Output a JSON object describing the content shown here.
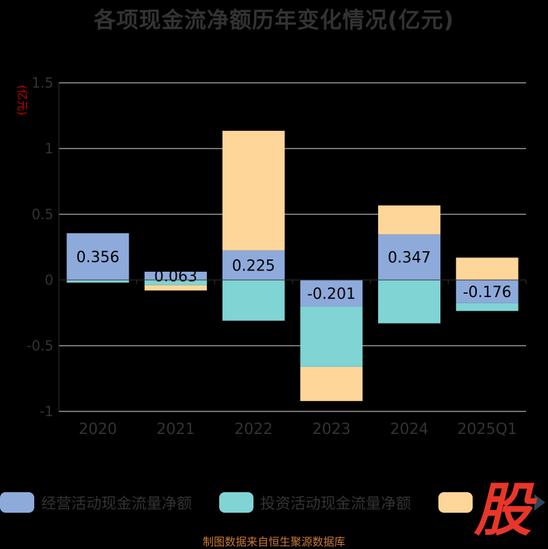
{
  "chart_data": {
    "type": "bar",
    "stacked": true,
    "title": "各项现金流净额历年变化情况(亿元)",
    "ylabel": "(亿元)",
    "categories": [
      "2020",
      "2021",
      "2022",
      "2023",
      "2024",
      "2025Q1"
    ],
    "ylim": [
      -1,
      1.5
    ],
    "yticks": [
      "1.5",
      "1",
      "0.5",
      "0",
      "-0.5",
      "-1"
    ],
    "ytick_values": [
      1.5,
      1,
      0.5,
      0,
      -0.5,
      -1
    ],
    "grid": true,
    "series": [
      {
        "name": "经营活动现金流量净额",
        "color": "#8eaadb",
        "values": [
          0.356,
          0.063,
          0.225,
          -0.201,
          0.347,
          -0.176
        ],
        "labels": [
          "0.356",
          "0.063",
          "0.225",
          "-0.201",
          "0.347",
          "-0.176"
        ]
      },
      {
        "name": "投资活动现金流量净额",
        "color": "#80d4d4",
        "values": [
          -0.02,
          -0.04,
          -0.31,
          -0.46,
          -0.33,
          -0.06
        ]
      },
      {
        "name": "",
        "color": "#ffd699",
        "values": [
          0.0,
          -0.04,
          0.91,
          -0.26,
          0.22,
          0.17
        ]
      }
    ]
  },
  "watermark": "股",
  "source": "制图数据来自恒生聚源数据库"
}
